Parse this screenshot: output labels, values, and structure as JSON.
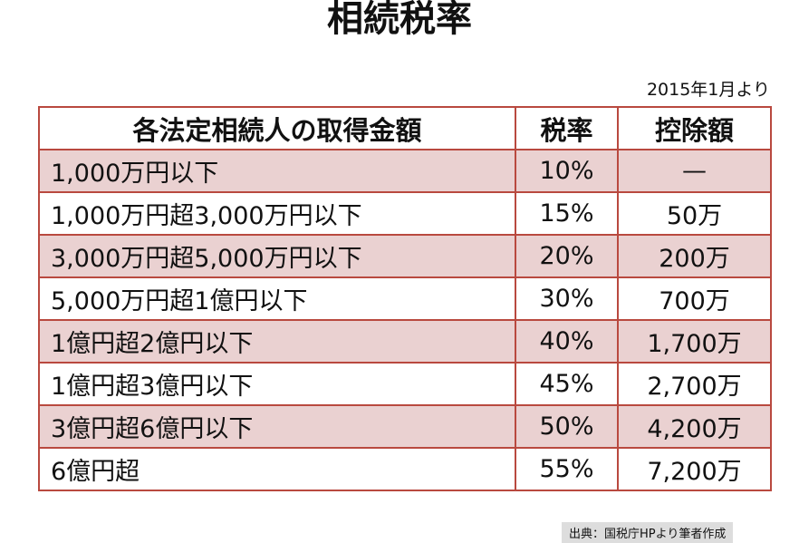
{
  "header": {
    "title": "相続税率",
    "note": "2015年1月より"
  },
  "table": {
    "columns": [
      "各法定相続人の取得金額",
      "税率",
      "控除額"
    ],
    "rows": [
      [
        "1,000万円以下",
        "10%",
        "—"
      ],
      [
        "1,000万円超3,000万円以下",
        "15%",
        "50万"
      ],
      [
        "3,000万円超5,000万円以下",
        "20%",
        "200万"
      ],
      [
        "5,000万円超1億円以下",
        "30%",
        "700万"
      ],
      [
        "1億円超2億円以下",
        "40%",
        "1,700万"
      ],
      [
        "1億円超3億円以下",
        "45%",
        "2,700万"
      ],
      [
        "3億円超6億円以下",
        "50%",
        "4,200万"
      ],
      [
        "6億円超",
        "55%",
        "7,200万"
      ]
    ]
  },
  "footer": {
    "source": "出典：国税庁HPより筆者作成"
  }
}
